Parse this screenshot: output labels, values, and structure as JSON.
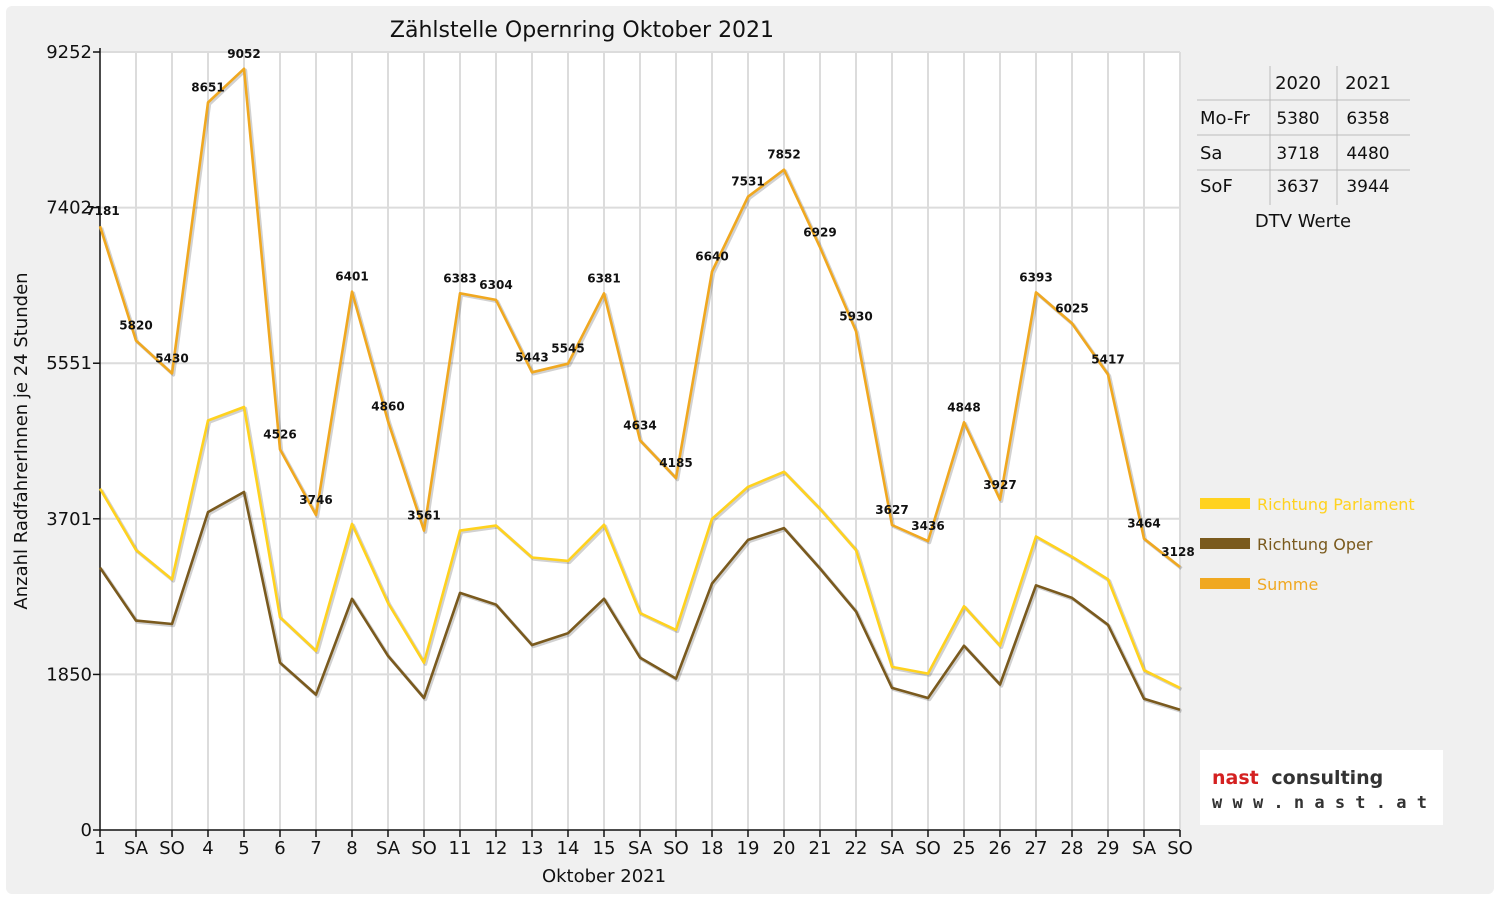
{
  "chart_data": {
    "type": "line",
    "title": "Zählstelle Opernring Oktober 2021",
    "xlabel": "Oktober 2021",
    "ylabel": "Anzahl RadfahrerInnen je 24 Stunden",
    "ylim": [
      0,
      9252
    ],
    "yticks": [
      0,
      1850,
      3701,
      5551,
      7402,
      9252
    ],
    "grid": true,
    "legend_position": "right",
    "categories": [
      "1",
      "SA",
      "SO",
      "4",
      "5",
      "6",
      "7",
      "8",
      "SA",
      "SO",
      "11",
      "12",
      "13",
      "14",
      "15",
      "SA",
      "SO",
      "18",
      "19",
      "20",
      "21",
      "22",
      "SA",
      "SO",
      "25",
      "26",
      "27",
      "28",
      "29",
      "SA",
      "SO"
    ],
    "holiday_indices": [
      2,
      9,
      16,
      23,
      25,
      30
    ],
    "series": [
      {
        "name": "Richtung Parlament",
        "color": "#ffd21f",
        "values": [
          4060,
          3330,
          2980,
          4870,
          5030,
          2530,
          2130,
          3640,
          2700,
          1990,
          3560,
          3620,
          3240,
          3200,
          3630,
          2580,
          2380,
          3700,
          4080,
          4260,
          3820,
          3330,
          1940,
          1860,
          2660,
          2190,
          3490,
          3250,
          2980,
          1900,
          1690
        ]
      },
      {
        "name": "Richtung Oper",
        "color": "#7a5a1e",
        "values": [
          3120,
          2490,
          2450,
          3780,
          4020,
          1990,
          1610,
          2750,
          2070,
          1570,
          2820,
          2680,
          2200,
          2340,
          2750,
          2050,
          1800,
          2930,
          3450,
          3590,
          3110,
          2600,
          1690,
          1570,
          2190,
          1730,
          2910,
          2760,
          2440,
          1560,
          1430
        ]
      },
      {
        "name": "Summe",
        "color": "#f0a820",
        "values": [
          7181,
          5820,
          5430,
          8651,
          9052,
          4526,
          3746,
          6401,
          4860,
          3561,
          6383,
          6304,
          5443,
          5545,
          6381,
          4634,
          4185,
          6640,
          7531,
          7852,
          6929,
          5930,
          3627,
          3436,
          4848,
          3927,
          6393,
          6025,
          5417,
          3464,
          3128
        ],
        "labels": [
          "7181",
          "5820",
          "5430",
          "8651",
          "9052",
          "4526",
          "3746",
          "6401",
          "4860",
          "3561",
          "6383",
          "6304",
          "5443",
          "5545",
          "6381",
          "4634",
          "4185",
          "6640",
          "7531",
          "7852",
          "6929",
          "5930",
          "3627",
          "3436",
          "4848",
          "3927",
          "6393",
          "6025",
          "5417",
          "3464",
          "3128"
        ]
      }
    ]
  },
  "dtv_table": {
    "caption": "DTV Werte",
    "headers": [
      "",
      "2020",
      "2021"
    ],
    "rows": [
      [
        "Mo-Fr",
        "5380",
        "6358"
      ],
      [
        "Sa",
        "3718",
        "4480"
      ],
      [
        "SoF",
        "3637",
        "3944"
      ]
    ]
  },
  "logo": {
    "line1_part1": "nast",
    "line1_part2": "consulting",
    "line2": "w w w . n a s t . a t",
    "red": "#d42020",
    "dark": "#333333"
  }
}
